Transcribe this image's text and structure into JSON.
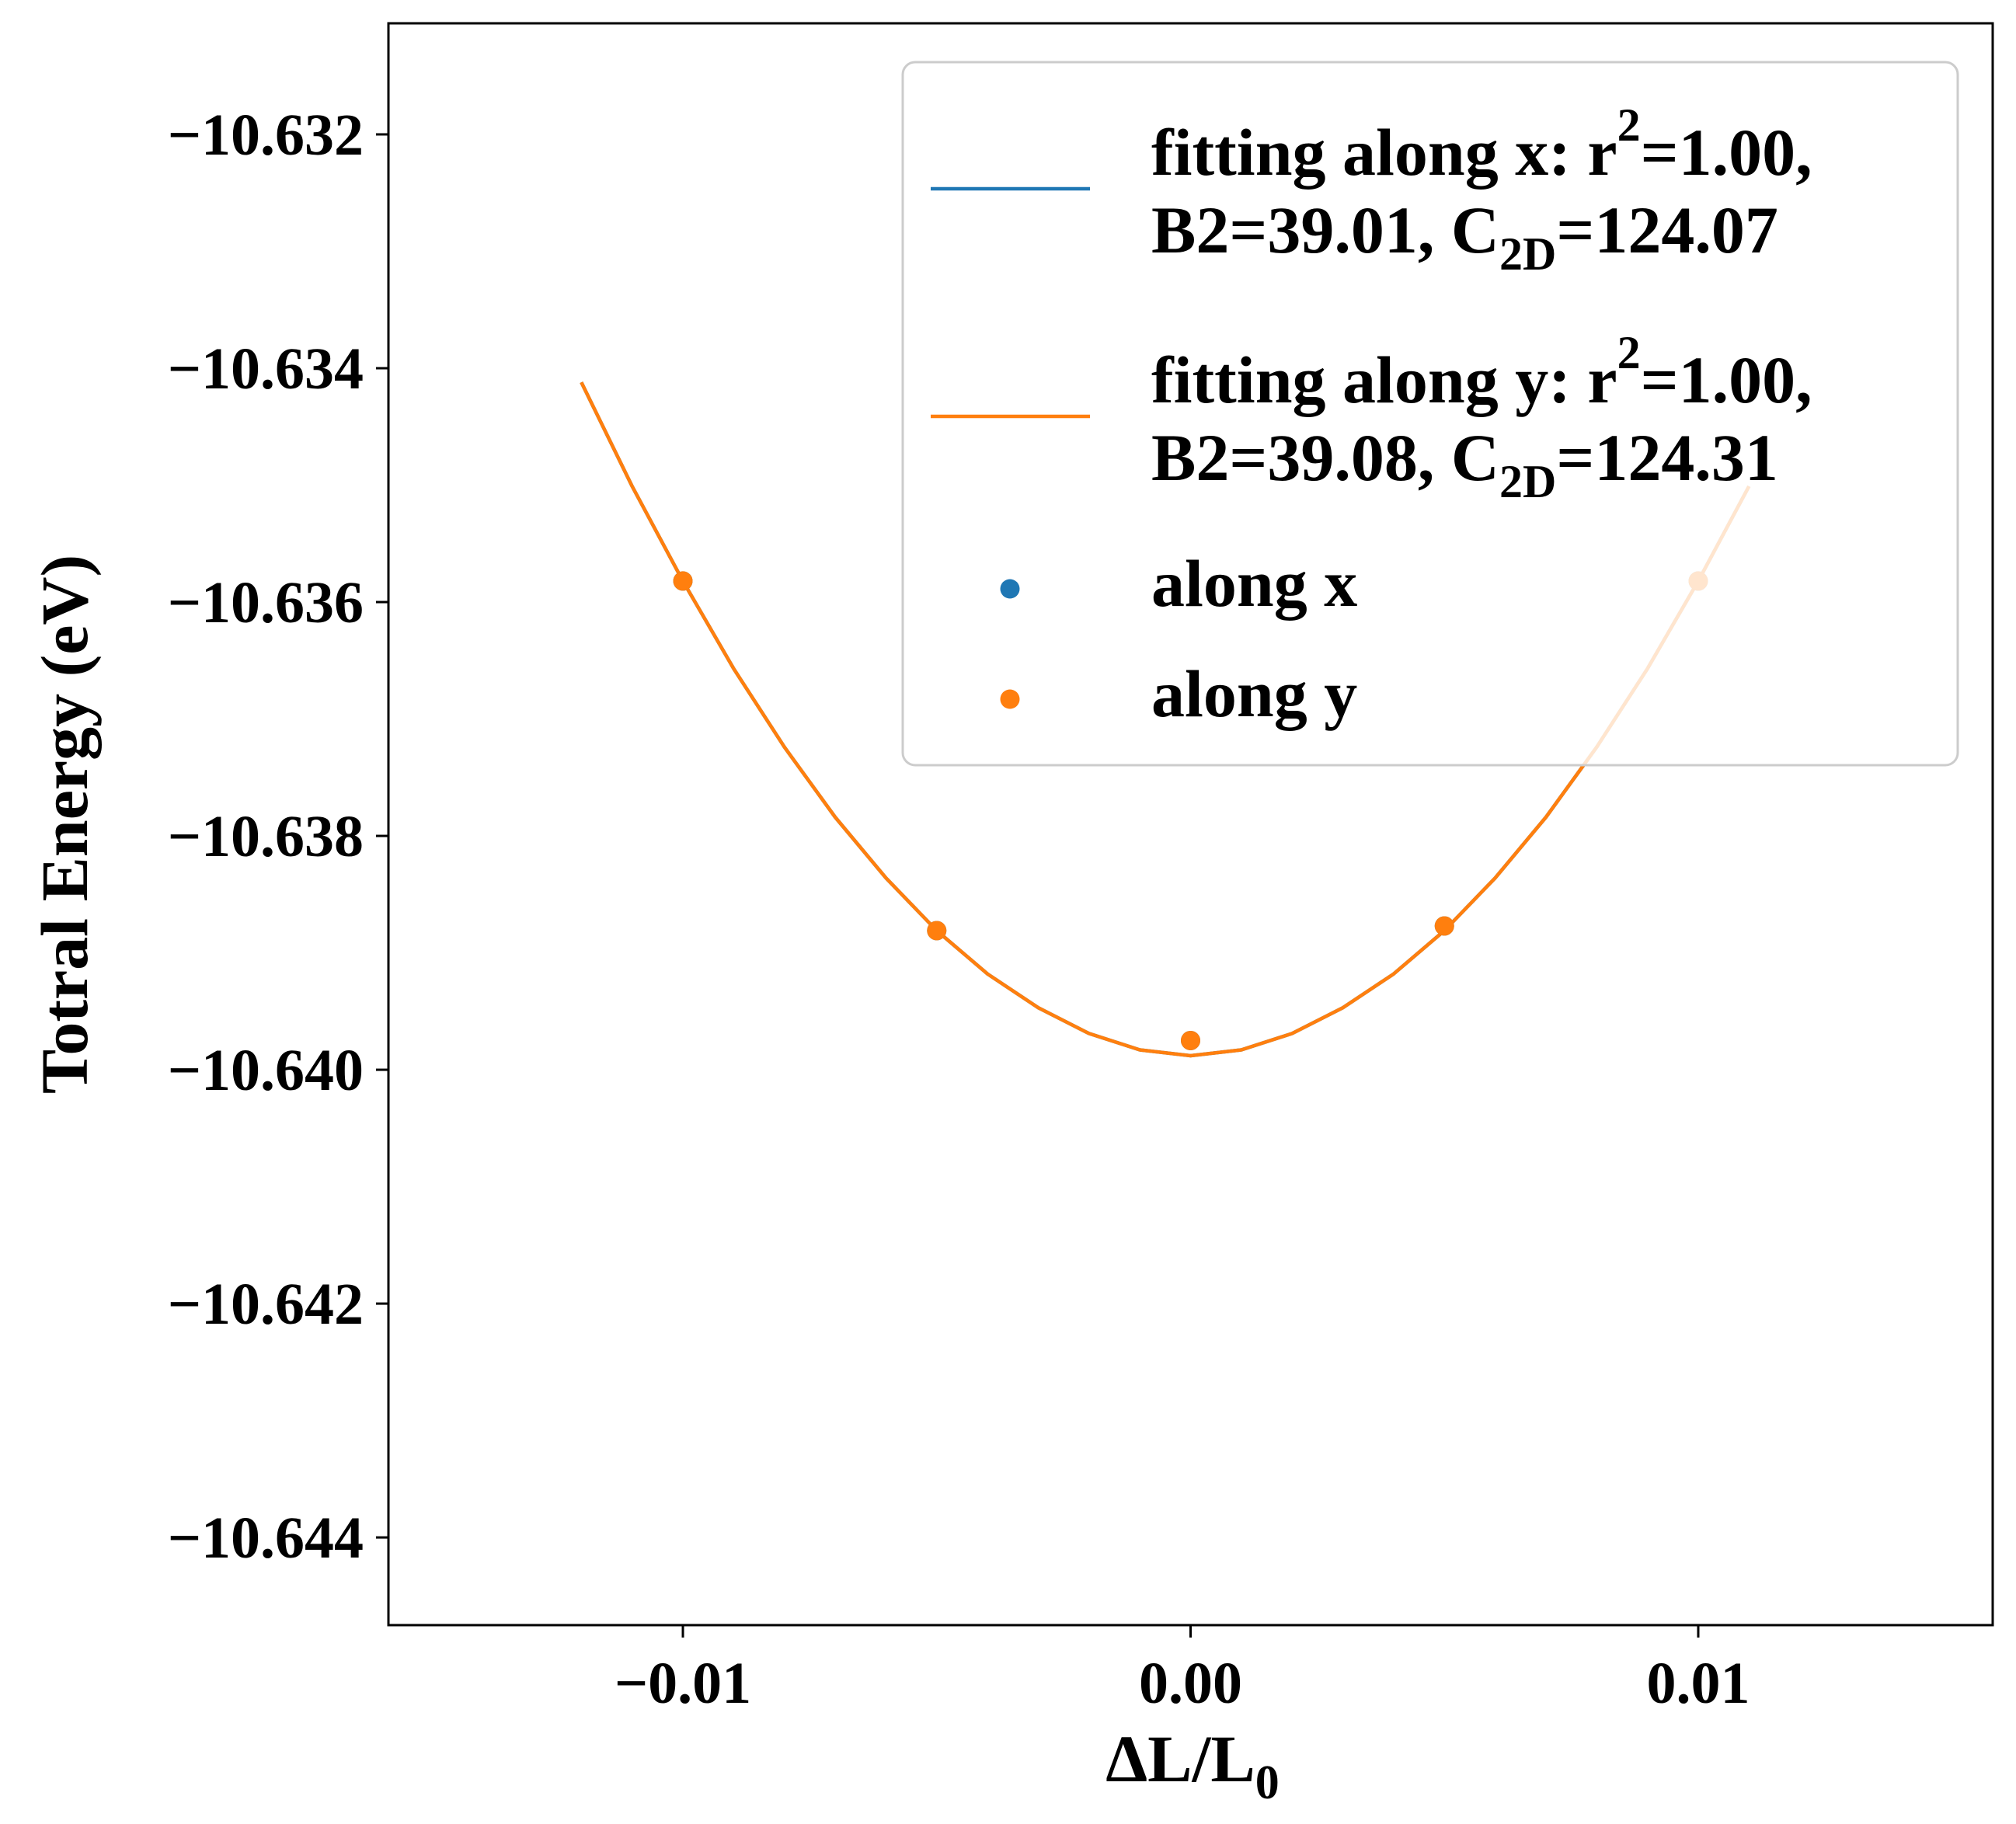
{
  "chart_data": {
    "type": "line",
    "title": "",
    "xlabel": "ΔL/L",
    "xlabel_sub": "0",
    "ylabel": "Totral Energy (eV)",
    "xlim": [
      -0.0158,
      0.0158
    ],
    "ylim": [
      -10.64475,
      -10.63105
    ],
    "x_ticks": [
      -0.01,
      0.0,
      0.01
    ],
    "x_tick_labels": [
      "−0.01",
      "0.00",
      "0.01"
    ],
    "y_ticks": [
      -10.632,
      -10.634,
      -10.636,
      -10.638,
      -10.64,
      -10.642,
      -10.644
    ],
    "y_tick_labels": [
      "−10.632",
      "−10.634",
      "−10.636",
      "−10.638",
      "−10.640",
      "−10.642",
      "−10.644"
    ],
    "grid": false,
    "legend_position": "upper-right",
    "series": [
      {
        "kind": "line",
        "color": "#1f77b4",
        "label_lines": [
          [
            {
              "t": "fitting along x: r"
            },
            {
              "t": "2",
              "sup": true
            },
            {
              "t": "=1.00,"
            }
          ],
          [
            {
              "t": "B2=39.01, C"
            },
            {
              "t": "2D",
              "sub": true
            },
            {
              "t": "=124.07"
            }
          ]
        ],
        "x": [
          -0.012,
          -0.011,
          -0.01,
          -0.009,
          -0.008,
          -0.007,
          -0.006,
          -0.005,
          -0.004,
          -0.003,
          -0.002,
          -0.001,
          0.0,
          0.001,
          0.002,
          0.003,
          0.004,
          0.005,
          0.006,
          0.007,
          0.008,
          0.009,
          0.01,
          0.011
        ],
        "y": [
          -10.63412,
          -10.63501,
          -10.63582,
          -10.63657,
          -10.63724,
          -10.63784,
          -10.63836,
          -10.63881,
          -10.63918,
          -10.63947,
          -10.63969,
          -10.63983,
          -10.63988,
          -10.63983,
          -10.63969,
          -10.63947,
          -10.63918,
          -10.63881,
          -10.63836,
          -10.63784,
          -10.63724,
          -10.63657,
          -10.63582,
          -10.63501
        ]
      },
      {
        "kind": "line",
        "color": "#ff7f0e",
        "label_lines": [
          [
            {
              "t": "fitting along y: r"
            },
            {
              "t": "2",
              "sup": true
            },
            {
              "t": "=1.00,"
            }
          ],
          [
            {
              "t": "B2=39.08, C"
            },
            {
              "t": "2D",
              "sub": true
            },
            {
              "t": "=124.31"
            }
          ]
        ],
        "x": [
          -0.012,
          -0.011,
          -0.01,
          -0.009,
          -0.008,
          -0.007,
          -0.006,
          -0.005,
          -0.004,
          -0.003,
          -0.002,
          -0.001,
          0.0,
          0.001,
          0.002,
          0.003,
          0.004,
          0.005,
          0.006,
          0.007,
          0.008,
          0.009,
          0.01,
          0.011
        ],
        "y": [
          -10.63412,
          -10.63501,
          -10.63582,
          -10.63657,
          -10.63724,
          -10.63784,
          -10.63836,
          -10.63881,
          -10.63918,
          -10.63947,
          -10.63969,
          -10.63983,
          -10.63988,
          -10.63983,
          -10.63969,
          -10.63947,
          -10.63918,
          -10.63881,
          -10.63836,
          -10.63784,
          -10.63724,
          -10.63657,
          -10.63582,
          -10.63501
        ]
      },
      {
        "kind": "scatter",
        "color": "#1f77b4",
        "label_lines": [
          [
            {
              "t": "along x"
            }
          ]
        ],
        "x": [
          -0.01,
          -0.005,
          0.0,
          0.005,
          0.01
        ],
        "y": [
          -10.63582,
          -10.63881,
          -10.63975,
          -10.63877,
          -10.63582
        ]
      },
      {
        "kind": "scatter",
        "color": "#ff7f0e",
        "label_lines": [
          [
            {
              "t": "along y"
            }
          ]
        ],
        "x": [
          -0.01,
          -0.005,
          0.0,
          0.005,
          0.01
        ],
        "y": [
          -10.63582,
          -10.63881,
          -10.63975,
          -10.63877,
          -10.63582
        ]
      }
    ]
  }
}
